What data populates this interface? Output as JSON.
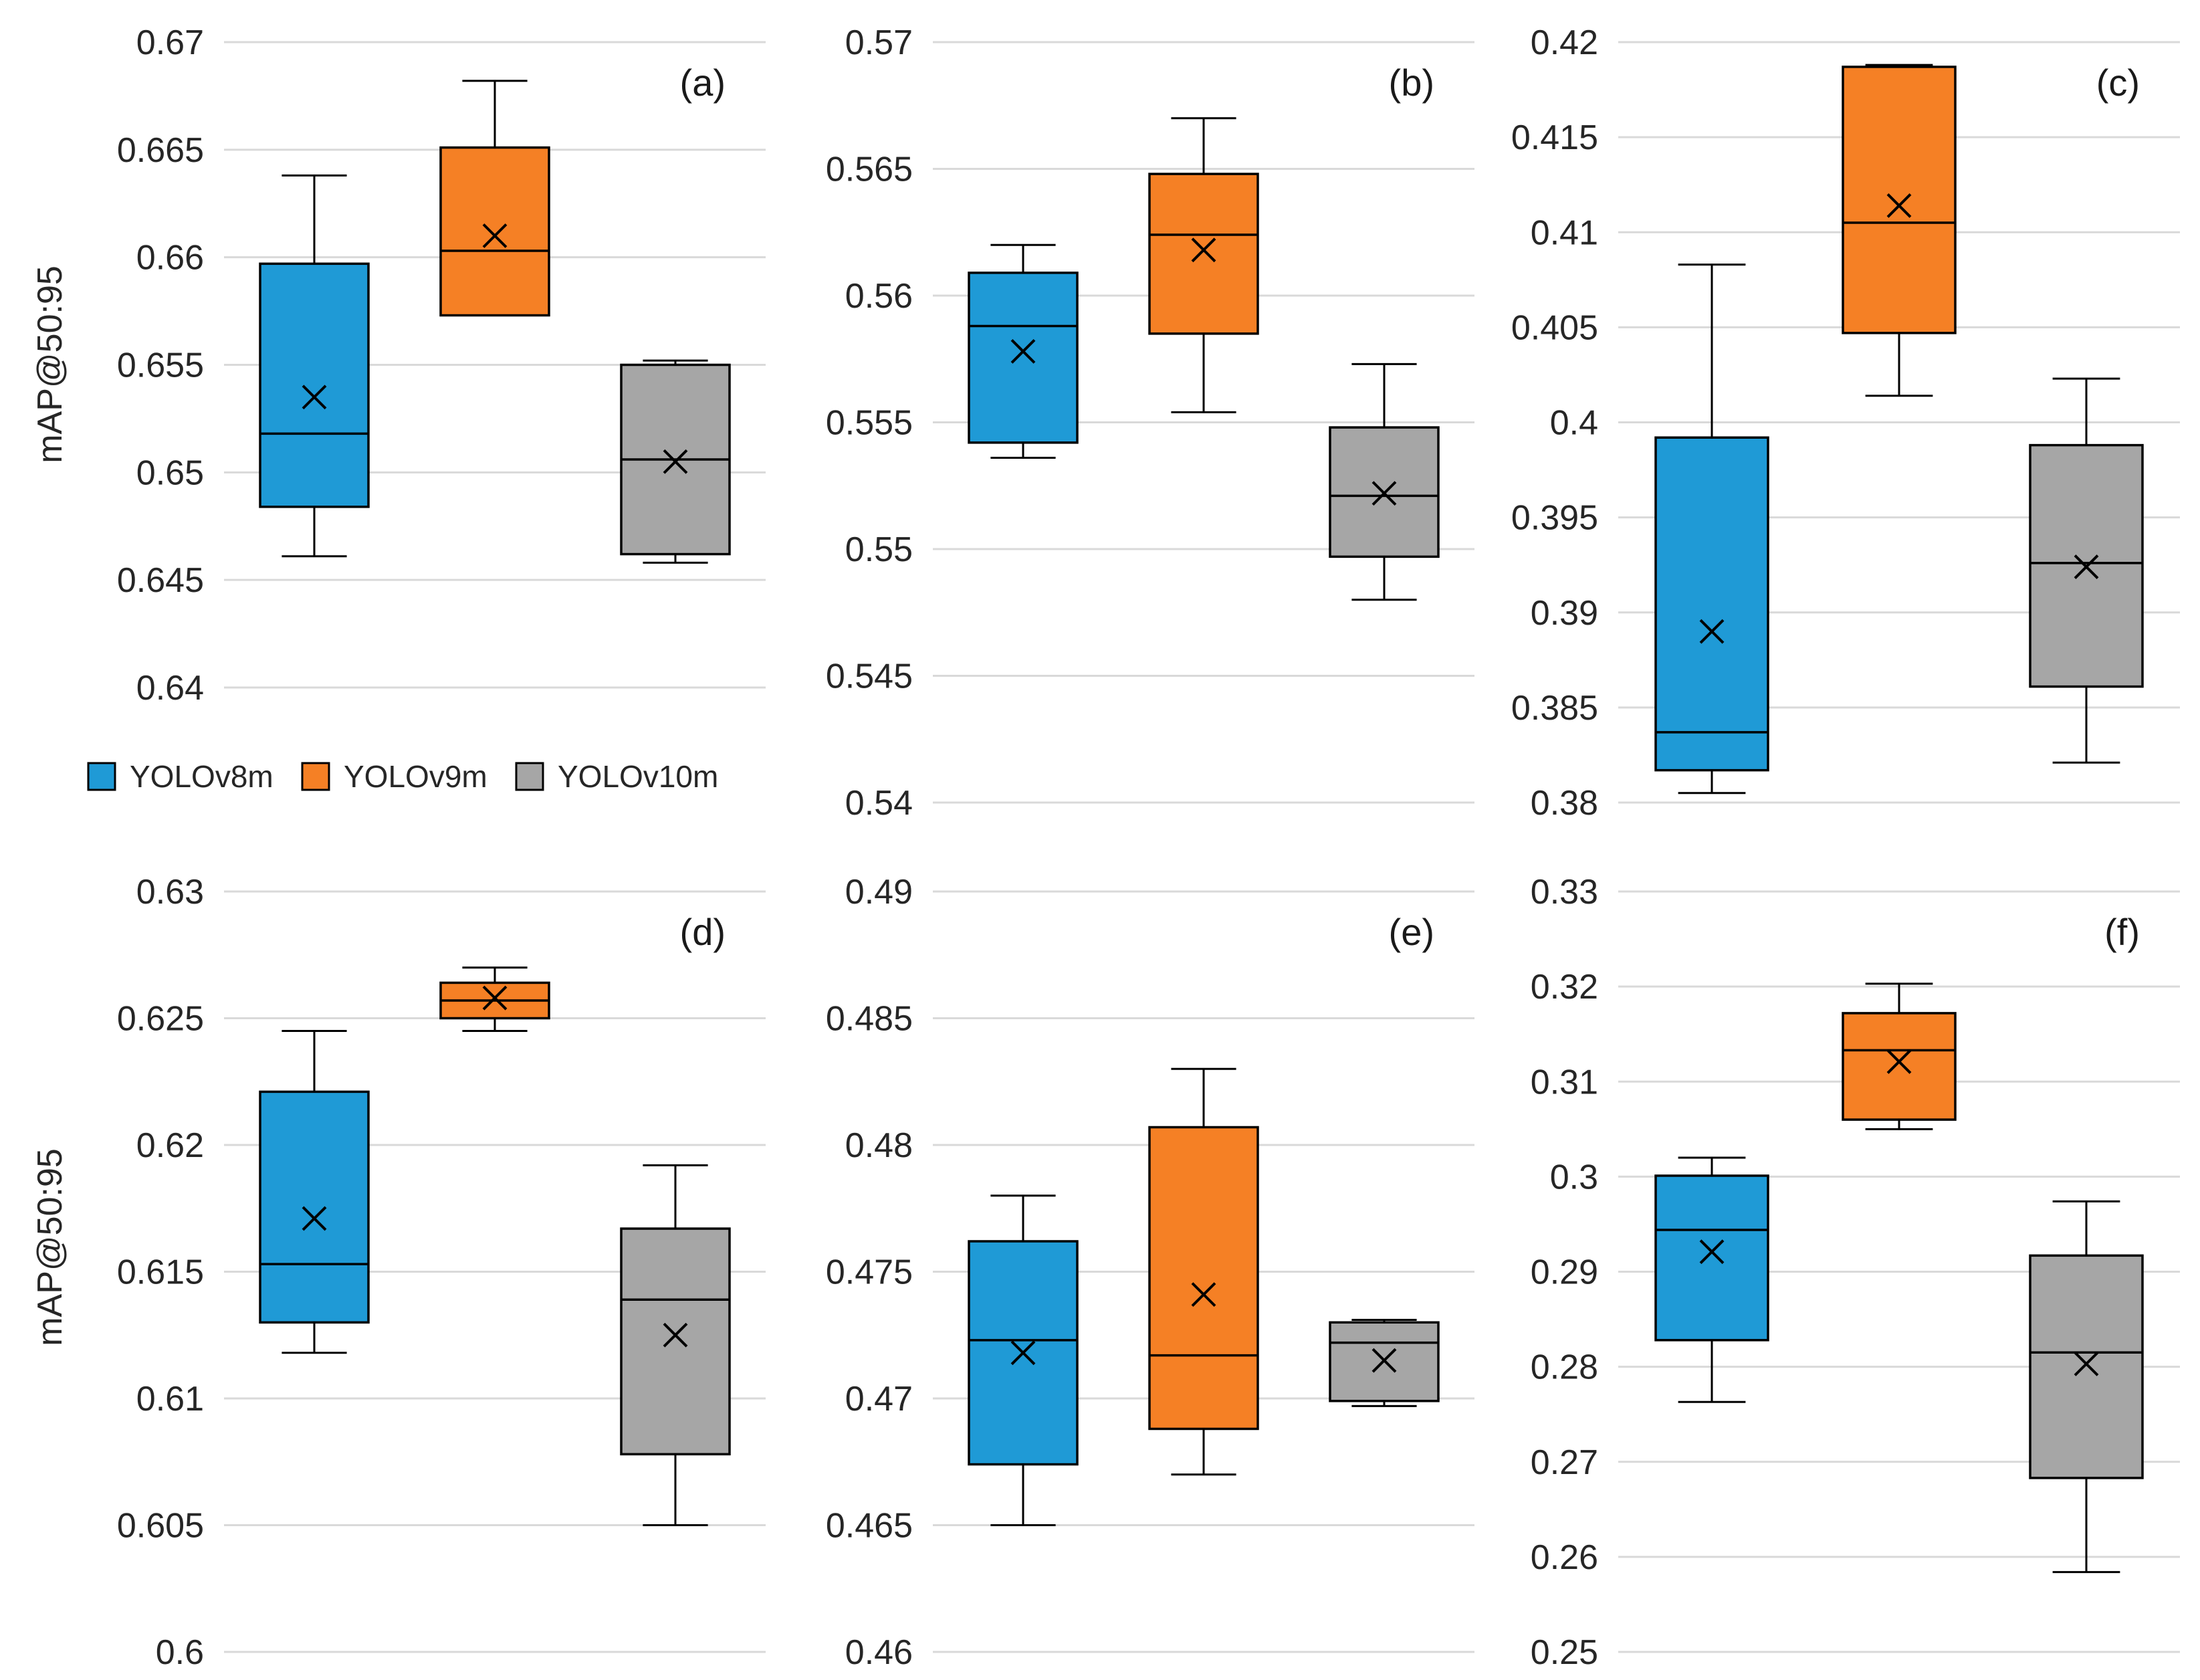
{
  "colors": {
    "YOLOv8m": "#1f9ad6",
    "YOLOv9m": "#f58025",
    "YOLOv10m": "#a6a6a6",
    "grid": "#d9d9d9",
    "stroke": "#000000"
  },
  "legend": [
    "YOLOv8m",
    "YOLOv9m",
    "YOLOv10m"
  ],
  "ylabel": "mAP@50:95",
  "chart_data": [
    {
      "type": "box",
      "label": "(a)",
      "ylabel": "mAP@50:95",
      "ylim": [
        0.64,
        0.67
      ],
      "ticks": [
        "0.64",
        "0.645",
        "0.65",
        "0.655",
        "0.66",
        "0.665",
        "0.67"
      ],
      "series": [
        {
          "name": "YOLOv8m",
          "whisker_low": 0.6461,
          "q1": 0.6484,
          "median": 0.6518,
          "q3": 0.6597,
          "whisker_high": 0.6638,
          "mean": 0.6535
        },
        {
          "name": "YOLOv9m",
          "whisker_low": 0.6573,
          "q1": 0.6573,
          "median": 0.6603,
          "q3": 0.6651,
          "whisker_high": 0.6682,
          "mean": 0.661
        },
        {
          "name": "YOLOv10m",
          "whisker_low": 0.6458,
          "q1": 0.6462,
          "median": 0.6506,
          "q3": 0.655,
          "whisker_high": 0.6552,
          "mean": 0.6505
        }
      ]
    },
    {
      "type": "box",
      "label": "(b)",
      "ylim": [
        0.54,
        0.57
      ],
      "ticks": [
        "0.54",
        "0.545",
        "0.55",
        "0.555",
        "0.56",
        "0.565",
        "0.57"
      ],
      "series": [
        {
          "name": "YOLOv8m",
          "whisker_low": 0.5536,
          "q1": 0.5542,
          "median": 0.5588,
          "q3": 0.5609,
          "whisker_high": 0.562,
          "mean": 0.5578
        },
        {
          "name": "YOLOv9m",
          "whisker_low": 0.5554,
          "q1": 0.5585,
          "median": 0.5624,
          "q3": 0.5648,
          "whisker_high": 0.567,
          "mean": 0.5618
        },
        {
          "name": "YOLOv10m",
          "whisker_low": 0.548,
          "q1": 0.5497,
          "median": 0.5521,
          "q3": 0.5548,
          "whisker_high": 0.5573,
          "mean": 0.5522
        }
      ]
    },
    {
      "type": "box",
      "label": "(c)",
      "ylim": [
        0.38,
        0.42
      ],
      "ticks": [
        "0.38",
        "0.385",
        "0.39",
        "0.395",
        "0.4",
        "0.405",
        "0.41",
        "0.415",
        "0.42"
      ],
      "series": [
        {
          "name": "YOLOv8m",
          "whisker_low": 0.3805,
          "q1": 0.3817,
          "median": 0.3837,
          "q3": 0.3992,
          "whisker_high": 0.4083,
          "mean": 0.389
        },
        {
          "name": "YOLOv9m",
          "whisker_low": 0.4014,
          "q1": 0.4047,
          "median": 0.4105,
          "q3": 0.4187,
          "whisker_high": 0.4188,
          "mean": 0.4114
        },
        {
          "name": "YOLOv10m",
          "whisker_low": 0.3821,
          "q1": 0.3861,
          "median": 0.3926,
          "q3": 0.3988,
          "whisker_high": 0.4023,
          "mean": 0.3924
        }
      ]
    },
    {
      "type": "box",
      "label": "(d)",
      "ylabel": "mAP@50:95",
      "ylim": [
        0.6,
        0.63
      ],
      "ticks": [
        "0.6",
        "0.605",
        "0.61",
        "0.615",
        "0.62",
        "0.625",
        "0.63"
      ],
      "series": [
        {
          "name": "YOLOv8m",
          "whisker_low": 0.6118,
          "q1": 0.613,
          "median": 0.6153,
          "q3": 0.6221,
          "whisker_high": 0.6245,
          "mean": 0.6171
        },
        {
          "name": "YOLOv9m",
          "whisker_low": 0.6245,
          "q1": 0.625,
          "median": 0.6257,
          "q3": 0.6264,
          "whisker_high": 0.627,
          "mean": 0.6258
        },
        {
          "name": "YOLOv10m",
          "whisker_low": 0.605,
          "q1": 0.6078,
          "median": 0.6139,
          "q3": 0.6167,
          "whisker_high": 0.6192,
          "mean": 0.6125
        }
      ]
    },
    {
      "type": "box",
      "label": "(e)",
      "ylim": [
        0.46,
        0.49
      ],
      "ticks": [
        "0.46",
        "0.465",
        "0.47",
        "0.475",
        "0.48",
        "0.485",
        "0.49"
      ],
      "series": [
        {
          "name": "YOLOv8m",
          "whisker_low": 0.465,
          "q1": 0.4674,
          "median": 0.4723,
          "q3": 0.4762,
          "whisker_high": 0.478,
          "mean": 0.4718
        },
        {
          "name": "YOLOv9m",
          "whisker_low": 0.467,
          "q1": 0.4688,
          "median": 0.4717,
          "q3": 0.4807,
          "whisker_high": 0.483,
          "mean": 0.4741
        },
        {
          "name": "YOLOv10m",
          "whisker_low": 0.4697,
          "q1": 0.4699,
          "median": 0.4722,
          "q3": 0.473,
          "whisker_high": 0.4731,
          "mean": 0.4715
        }
      ]
    },
    {
      "type": "box",
      "label": "(f)",
      "ylim": [
        0.25,
        0.33
      ],
      "ticks": [
        "0.25",
        "0.26",
        "0.27",
        "0.28",
        "0.29",
        "0.3",
        "0.31",
        "0.32",
        "0.33"
      ],
      "series": [
        {
          "name": "YOLOv8m",
          "whisker_low": 0.2763,
          "q1": 0.2828,
          "median": 0.2944,
          "q3": 0.3001,
          "whisker_high": 0.302,
          "mean": 0.2921
        },
        {
          "name": "YOLOv9m",
          "whisker_low": 0.305,
          "q1": 0.306,
          "median": 0.3133,
          "q3": 0.3172,
          "whisker_high": 0.3203,
          "mean": 0.3121
        },
        {
          "name": "YOLOv10m",
          "whisker_low": 0.2584,
          "q1": 0.2683,
          "median": 0.2815,
          "q3": 0.2917,
          "whisker_high": 0.2974,
          "mean": 0.2803
        }
      ]
    }
  ]
}
